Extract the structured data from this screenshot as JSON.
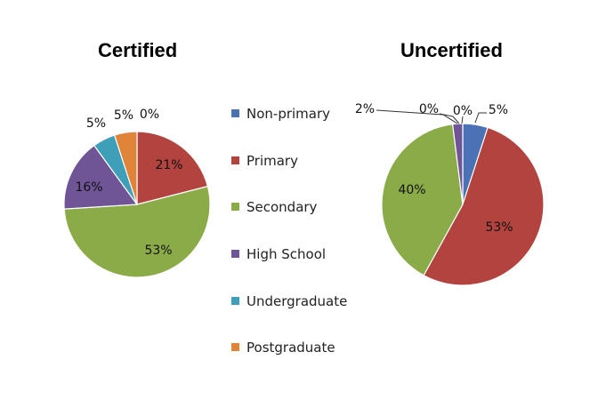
{
  "chart_data": [
    {
      "type": "pie",
      "title": "Certified",
      "categories": [
        "Non-primary",
        "Primary",
        "Secondary",
        "High School",
        "Undergraduate",
        "Postgraduate"
      ],
      "values": [
        0,
        21,
        53,
        16,
        5,
        5
      ],
      "labels": [
        "0%",
        "21%",
        "53%",
        "16%",
        "5%",
        "5%"
      ],
      "legend_position": "center-between"
    },
    {
      "type": "pie",
      "title": "Uncertified",
      "categories": [
        "Non-primary",
        "Primary",
        "Secondary",
        "High School",
        "Undergraduate",
        "Postgraduate"
      ],
      "values": [
        5,
        53,
        40,
        2,
        0,
        0
      ],
      "labels": [
        "5%",
        "53%",
        "40%",
        "2%",
        "0%",
        "0%"
      ],
      "legend_position": "center-between"
    }
  ],
  "legend": [
    {
      "label": "Non-primary",
      "color": "#4a72b4"
    },
    {
      "label": "Primary",
      "color": "#b2433f"
    },
    {
      "label": "Secondary",
      "color": "#8aab48"
    },
    {
      "label": "High School",
      "color": "#6f5496"
    },
    {
      "label": "Undergraduate",
      "color": "#3f9eb8"
    },
    {
      "label": "Postgraduate",
      "color": "#e0843a"
    }
  ]
}
